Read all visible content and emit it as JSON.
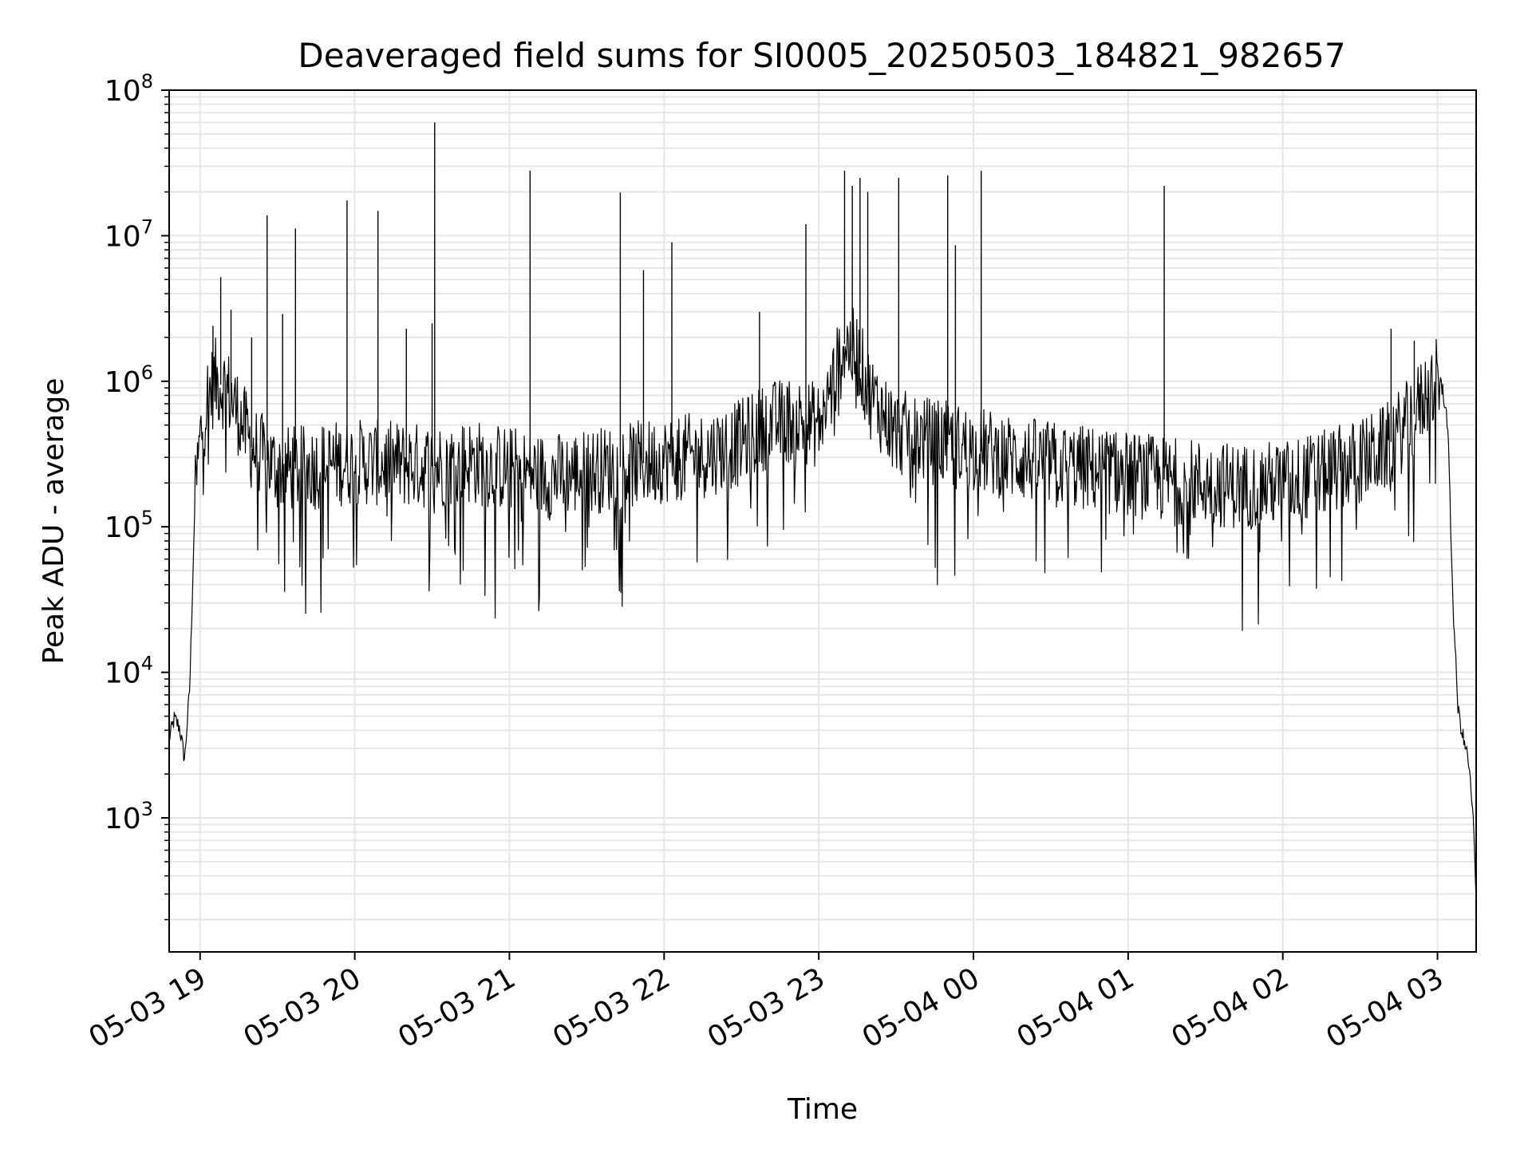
{
  "chart_data": {
    "type": "line",
    "title": "Deaveraged field sums for SI0005_20250503_184821_982657",
    "xlabel": "Time",
    "ylabel": "Peak ADU - average",
    "yscale": "log",
    "grid": true,
    "legend": "none",
    "xlim": [
      "2025-05-03 18:48",
      "2025-05-04 03:15"
    ],
    "ylim": [
      120,
      100000000
    ],
    "xticks": [
      {
        "label": "05-03 19",
        "value": "2025-05-03 19:00"
      },
      {
        "label": "05-03 20",
        "value": "2025-05-03 20:00"
      },
      {
        "label": "05-03 21",
        "value": "2025-05-03 21:00"
      },
      {
        "label": "05-03 22",
        "value": "2025-05-03 22:00"
      },
      {
        "label": "05-03 23",
        "value": "2025-05-03 23:00"
      },
      {
        "label": "05-04 00",
        "value": "2025-05-04 00:00"
      },
      {
        "label": "05-04 01",
        "value": "2025-05-04 01:00"
      },
      {
        "label": "05-04 02",
        "value": "2025-05-04 02:00"
      },
      {
        "label": "05-04 03",
        "value": "2025-05-04 03:00"
      }
    ],
    "yticks": [
      {
        "base": "10",
        "exp": "3",
        "value": 1000
      },
      {
        "base": "10",
        "exp": "4",
        "value": 10000
      },
      {
        "base": "10",
        "exp": "5",
        "value": 100000
      },
      {
        "base": "10",
        "exp": "6",
        "value": 1000000
      },
      {
        "base": "10",
        "exp": "7",
        "value": 10000000
      },
      {
        "base": "10",
        "exp": "8",
        "value": 100000000
      }
    ],
    "series": [
      {
        "color": "#000000",
        "x": [
          "2025-05-03 18:48",
          "2025-05-03 18:50",
          "2025-05-03 18:52",
          "2025-05-03 18:54",
          "2025-05-03 18:56",
          "2025-05-03 18:58",
          "2025-05-03 19:00",
          "2025-05-03 19:03",
          "2025-05-03 19:06",
          "2025-05-03 19:10",
          "2025-05-03 19:15",
          "2025-05-03 19:20",
          "2025-05-03 19:30",
          "2025-05-03 19:40",
          "2025-05-03 19:50",
          "2025-05-03 20:00",
          "2025-05-03 20:15",
          "2025-05-03 20:30",
          "2025-05-03 20:45",
          "2025-05-03 21:00",
          "2025-05-03 21:15",
          "2025-05-03 21:30",
          "2025-05-03 21:45",
          "2025-05-03 22:00",
          "2025-05-03 22:15",
          "2025-05-03 22:30",
          "2025-05-03 22:40",
          "2025-05-03 22:50",
          "2025-05-03 23:00",
          "2025-05-03 23:05",
          "2025-05-03 23:10",
          "2025-05-03 23:15",
          "2025-05-03 23:20",
          "2025-05-03 23:30",
          "2025-05-03 23:45",
          "2025-05-04 00:00",
          "2025-05-04 00:15",
          "2025-05-04 00:30",
          "2025-05-04 00:45",
          "2025-05-04 01:00",
          "2025-05-04 01:15",
          "2025-05-04 01:30",
          "2025-05-04 01:45",
          "2025-05-04 02:00",
          "2025-05-04 02:15",
          "2025-05-04 02:30",
          "2025-05-04 02:40",
          "2025-05-04 02:50",
          "2025-05-04 02:55",
          "2025-05-04 03:00",
          "2025-05-04 03:02",
          "2025-05-04 03:04",
          "2025-05-04 03:06",
          "2025-05-04 03:08",
          "2025-05-04 03:10",
          "2025-05-04 03:12",
          "2025-05-04 03:14",
          "2025-05-04 03:15"
        ],
        "y": [
          3500,
          4800,
          4200,
          2500,
          8000,
          150000,
          400000,
          800000,
          1000000,
          900000,
          600000,
          350000,
          250000,
          250000,
          270000,
          280000,
          270000,
          260000,
          280000,
          250000,
          220000,
          240000,
          260000,
          290000,
          310000,
          380000,
          500000,
          550000,
          500000,
          900000,
          1800000,
          1500000,
          800000,
          450000,
          380000,
          340000,
          300000,
          270000,
          250000,
          230000,
          210000,
          200000,
          190000,
          200000,
          230000,
          280000,
          350000,
          550000,
          800000,
          1000000,
          900000,
          500000,
          30000,
          5500,
          3500,
          2500,
          900,
          250
        ],
        "spikes": [
          {
            "x": "2025-05-03 19:05",
            "y": 2400000
          },
          {
            "x": "2025-05-03 19:08",
            "y": 5200000
          },
          {
            "x": "2025-05-03 19:12",
            "y": 3100000
          },
          {
            "x": "2025-05-03 19:20",
            "y": 2000000
          },
          {
            "x": "2025-05-03 19:26",
            "y": 13800000
          },
          {
            "x": "2025-05-03 19:32",
            "y": 2900000
          },
          {
            "x": "2025-05-03 19:37",
            "y": 11200000
          },
          {
            "x": "2025-05-03 19:57",
            "y": 17500000
          },
          {
            "x": "2025-05-03 20:09",
            "y": 14800000
          },
          {
            "x": "2025-05-03 20:20",
            "y": 2300000
          },
          {
            "x": "2025-05-03 20:30",
            "y": 2500000
          },
          {
            "x": "2025-05-03 20:31",
            "y": 60000000
          },
          {
            "x": "2025-05-03 21:08",
            "y": 28000000
          },
          {
            "x": "2025-05-03 21:43",
            "y": 19800000
          },
          {
            "x": "2025-05-03 21:52",
            "y": 5800000
          },
          {
            "x": "2025-05-03 22:03",
            "y": 9000000
          },
          {
            "x": "2025-05-03 22:37",
            "y": 3000000
          },
          {
            "x": "2025-05-03 22:55",
            "y": 12000000
          },
          {
            "x": "2025-05-03 23:10",
            "y": 28000000
          },
          {
            "x": "2025-05-03 23:13",
            "y": 22000000
          },
          {
            "x": "2025-05-03 23:16",
            "y": 25000000
          },
          {
            "x": "2025-05-03 23:19",
            "y": 20000000
          },
          {
            "x": "2025-05-03 23:31",
            "y": 25000000
          },
          {
            "x": "2025-05-03 23:50",
            "y": 26000000
          },
          {
            "x": "2025-05-03 23:53",
            "y": 8600000
          },
          {
            "x": "2025-05-04 00:03",
            "y": 28000000
          },
          {
            "x": "2025-05-04 01:14",
            "y": 22000000
          },
          {
            "x": "2025-05-04 02:42",
            "y": 2300000
          },
          {
            "x": "2025-05-04 02:51",
            "y": 1900000
          }
        ]
      }
    ]
  }
}
